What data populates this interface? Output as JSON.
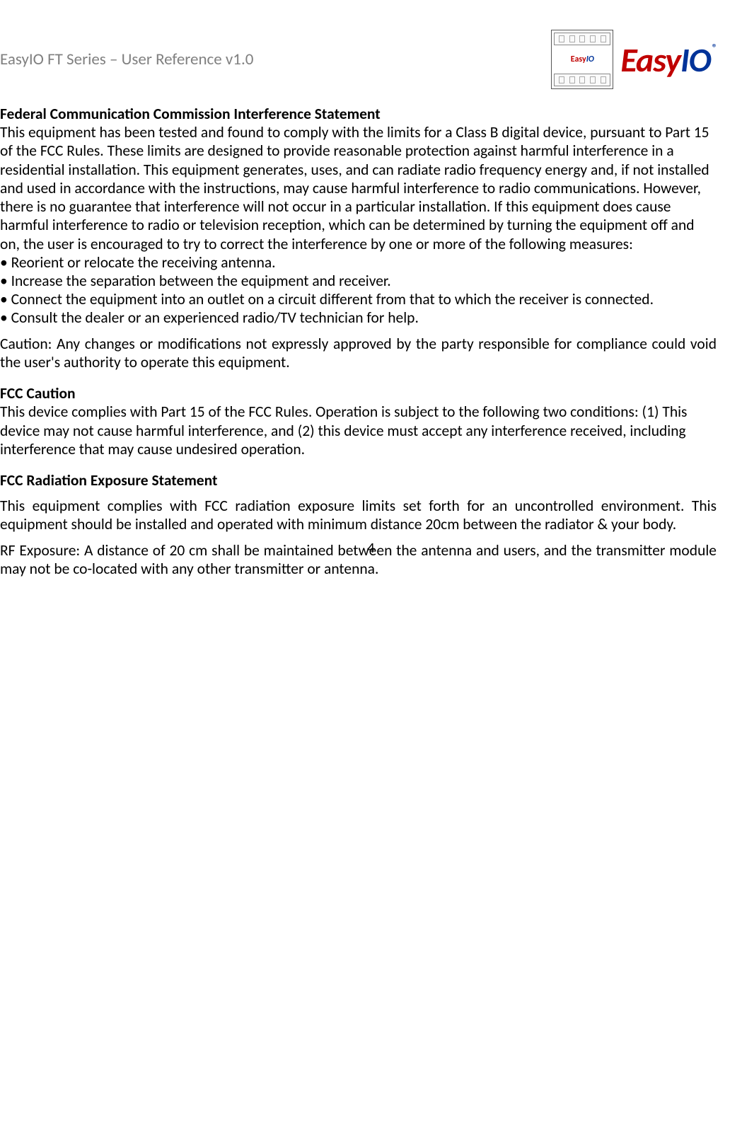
{
  "header": {
    "docTitle": "EasyIO FT Series – User Reference v1.0",
    "moduleLabel": "EasyIO",
    "brandRed": "Easy",
    "brandBlue": "IO",
    "reg": "®"
  },
  "sections": {
    "fcc_statement": {
      "title": "Federal Communication Commission Interference Statement",
      "body": "This equipment has been tested and found to comply with the limits for a Class B digital device, pursuant to Part 15 of the FCC Rules. These limits are designed to provide reasonable protection against harmful interference in a residential installation. This equipment generates, uses, and can radiate radio frequency energy and, if not installed and used in accordance with the instructions, may cause harmful interference to radio communications. However, there is no guarantee that interference will not occur in a particular installation. If this equipment does cause harmful interference to radio or television reception, which can be determined by turning the equipment off and on, the user is encouraged to try to correct the interference by one or more of the following measures:",
      "bullets": [
        "• Reorient or relocate the receiving antenna.",
        "• Increase the separation between the equipment and receiver.",
        "• Connect the equipment into an outlet on a circuit different from that to which the receiver is connected.",
        "• Consult the dealer or an experienced radio/TV technician for help."
      ],
      "caution": "Caution: Any changes or modifications not expressly approved by the party responsible for compliance could void the user's authority to operate this equipment."
    },
    "fcc_caution": {
      "title": "FCC Caution",
      "body": "This device complies with Part 15 of the FCC Rules. Operation is subject to the following two conditions: (1) This device may not cause harmful interference, and (2) this device must accept any interference received, including interference that may cause undesired operation."
    },
    "radiation": {
      "title": "FCC Radiation Exposure Statement",
      "body1": "This equipment complies with FCC radiation exposure limits set forth for an uncontrolled environment. This equipment should be installed and operated with minimum distance 20cm between the radiator & your body.",
      "body2": "RF Exposure: A distance of 20 cm shall be maintained between the antenna and users, and the transmitter module may not be co-located with any other transmitter or antenna."
    }
  },
  "pageNumber": "4"
}
